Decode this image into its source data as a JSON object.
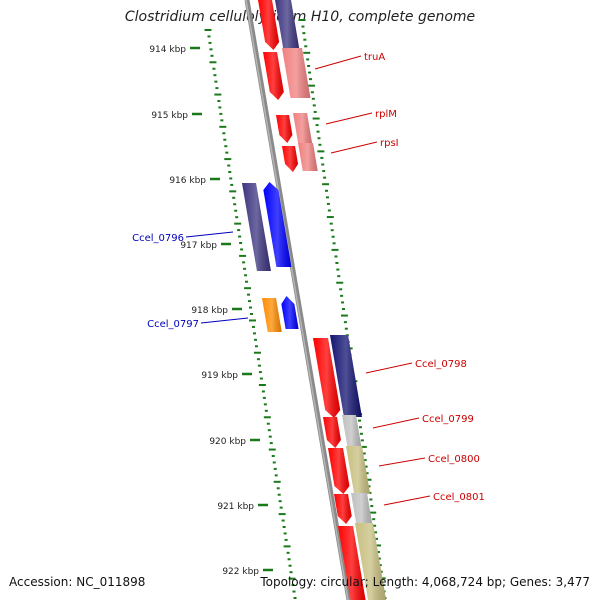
{
  "title": "Clostridium cellulolyticum H10, complete genome",
  "footer": {
    "accession": "Accession: NC_011898",
    "summary": "Topology: circular; Length: 4,068,724 bp; Genes: 3,477"
  },
  "scale": {
    "ticks": [
      "914 kbp",
      "915 kbp",
      "916 kbp",
      "917 kbp",
      "918 kbp",
      "919 kbp",
      "920 kbp",
      "921 kbp",
      "922 kbp"
    ]
  },
  "genes": [
    {
      "label": "truA",
      "color": "#cc0000",
      "strand": "reverse"
    },
    {
      "label": "rplM",
      "color": "#cc0000",
      "strand": "reverse"
    },
    {
      "label": "rpsI",
      "color": "#cc0000",
      "strand": "reverse"
    },
    {
      "label": "Ccel_0796",
      "color": "#0000bb",
      "strand": "forward"
    },
    {
      "label": "Ccel_0797",
      "color": "#0000bb",
      "strand": "forward"
    },
    {
      "label": "Ccel_0798",
      "color": "#cc0000",
      "strand": "reverse"
    },
    {
      "label": "Ccel_0799",
      "color": "#cc0000",
      "strand": "reverse"
    },
    {
      "label": "Ccel_0800",
      "color": "#cc0000",
      "strand": "reverse"
    },
    {
      "label": "Ccel_0801",
      "color": "#cc0000",
      "strand": "reverse"
    }
  ],
  "colors": {
    "tick": "#1a7a1a",
    "backbone": "#8a8a8a",
    "reverse_gene": "#ff0000",
    "forward_gene": "#0000ff",
    "cog_navy": "#3d3580",
    "cog_pink": "#f08080",
    "cog_orange": "#ff8c00",
    "cog_gray": "#c0c0c0",
    "cog_olive": "#c8bf80",
    "label_red": "#cc0000",
    "label_blue": "#0000bb"
  }
}
